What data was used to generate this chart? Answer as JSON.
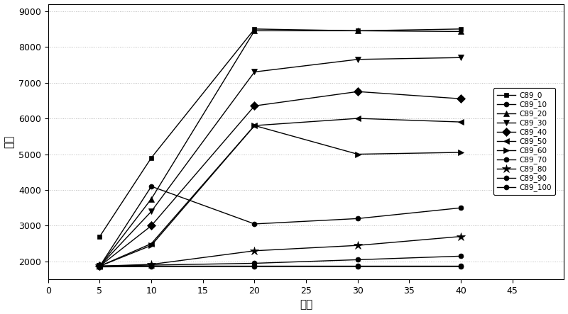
{
  "x": [
    5,
    10,
    20,
    30,
    40
  ],
  "series": [
    {
      "label": "C89_0",
      "marker": "s",
      "values": [
        2700,
        4900,
        8500,
        8450,
        8500
      ]
    },
    {
      "label": "C89_10",
      "marker": "o",
      "values": [
        1870,
        1870,
        1870,
        1870,
        1870
      ]
    },
    {
      "label": "C89_20",
      "marker": "^",
      "values": [
        1870,
        3750,
        8450,
        8450,
        8430
      ]
    },
    {
      "label": "C89_30",
      "marker": "v",
      "values": [
        1870,
        3400,
        7300,
        7650,
        7700
      ]
    },
    {
      "label": "C89_40",
      "marker": "D",
      "values": [
        1870,
        3000,
        6350,
        6750,
        6550
      ]
    },
    {
      "label": "C89_50",
      "marker": "<",
      "values": [
        1870,
        2500,
        5800,
        6000,
        5900
      ]
    },
    {
      "label": "C89_60",
      "marker": ">",
      "values": [
        1870,
        2450,
        5800,
        5000,
        5050
      ]
    },
    {
      "label": "C89_70",
      "marker": "o",
      "values": [
        1870,
        4100,
        3050,
        3200,
        3500
      ]
    },
    {
      "label": "C89_80",
      "marker": "*",
      "values": [
        1870,
        1920,
        2300,
        2450,
        2700
      ]
    },
    {
      "label": "C89_90",
      "marker": "o",
      "values": [
        1870,
        1900,
        1950,
        2050,
        2150
      ]
    },
    {
      "label": "C89_100",
      "marker": "o",
      "values": [
        1850,
        1860,
        1860,
        1860,
        1860
      ]
    }
  ],
  "xlabel": "流量",
  "ylabel": "电阱",
  "xlim": [
    0,
    50
  ],
  "ylim": [
    1500,
    9200
  ],
  "yticks": [
    2000,
    3000,
    4000,
    5000,
    6000,
    7000,
    8000,
    9000
  ],
  "xticks": [
    0,
    5,
    10,
    15,
    20,
    25,
    30,
    35,
    40,
    45
  ],
  "figsize": [
    8.0,
    4.43
  ],
  "dpi": 100,
  "line_color": "#000000",
  "background_color": "#ffffff",
  "grid_color": "#bbbbbb",
  "marker_sizes": {
    "C89_0": 5,
    "C89_10": 5,
    "C89_20": 6,
    "C89_30": 6,
    "C89_40": 6,
    "C89_50": 6,
    "C89_60": 6,
    "C89_70": 5,
    "C89_80": 9,
    "C89_90": 5,
    "C89_100": 5
  }
}
